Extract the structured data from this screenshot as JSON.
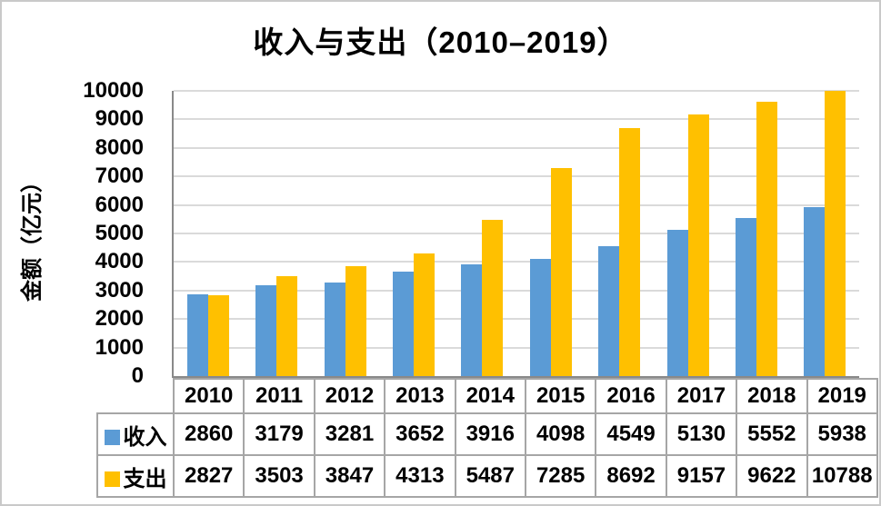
{
  "chart_data": {
    "type": "bar",
    "title": "收入与支出（2010–2019）",
    "xlabel": "",
    "ylabel": "金额（亿元）",
    "categories": [
      "2010",
      "2011",
      "2012",
      "2013",
      "2014",
      "2015",
      "2016",
      "2017",
      "2018",
      "2019"
    ],
    "series": [
      {
        "name": "收入",
        "color": "#5B9BD5",
        "values": [
          2860,
          3179,
          3281,
          3652,
          3916,
          4098,
          4549,
          5130,
          5552,
          5938
        ]
      },
      {
        "name": "支出",
        "color": "#FFC000",
        "values": [
          2827,
          3503,
          3847,
          4313,
          5487,
          7285,
          8692,
          9157,
          9622,
          10788
        ]
      }
    ],
    "ylim": [
      0,
      10000
    ],
    "ytick_step": 1000,
    "grid": true,
    "legend_position": "data-table-left",
    "bars_clipped_at_ymax": [
      "支出 2019"
    ]
  },
  "colors": {
    "income_bar": "#5B9BD5",
    "expense_bar": "#FFC000",
    "gridline": "#DADADA",
    "axis_line": "#898989",
    "table_border": "#A6A6A6",
    "text": "#000000",
    "frame_border": "#C9C9C9",
    "background": "#FFFFFF"
  }
}
